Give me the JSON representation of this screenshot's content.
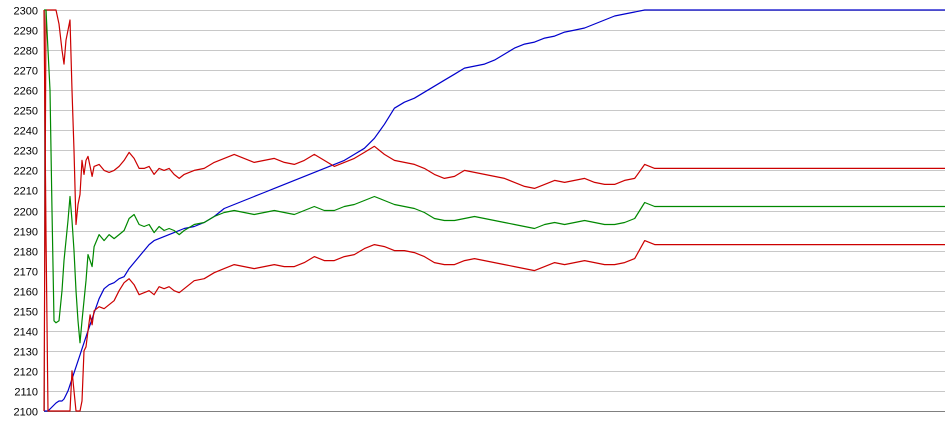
{
  "chart_data": {
    "type": "line",
    "title": "",
    "xlabel": "",
    "ylabel": "",
    "ylim": [
      2100,
      2300
    ],
    "grid": true,
    "legend": "none",
    "y_ticks": [
      2100,
      2110,
      2120,
      2130,
      2140,
      2150,
      2160,
      2170,
      2180,
      2190,
      2200,
      2210,
      2220,
      2230,
      2240,
      2250,
      2260,
      2270,
      2280,
      2290,
      2300
    ],
    "x": [
      0,
      2,
      4,
      6,
      8,
      10,
      12,
      15,
      18,
      20,
      22,
      24,
      26,
      28,
      30,
      32,
      34,
      36,
      38,
      40,
      42,
      44,
      46,
      48,
      50,
      55,
      60,
      65,
      70,
      75,
      80,
      85,
      90,
      95,
      100,
      105,
      110,
      115,
      120,
      125,
      130,
      135,
      140,
      150,
      160,
      170,
      180,
      190,
      200,
      210,
      220,
      230,
      240,
      250,
      260,
      270,
      280,
      290,
      300,
      310,
      320,
      330,
      340,
      350,
      360,
      370,
      380,
      390,
      400,
      410,
      420,
      430,
      440,
      450,
      460,
      470,
      480,
      490,
      500,
      510,
      520,
      530,
      540,
      550,
      560,
      570,
      580,
      590,
      600,
      610,
      620,
      630,
      640,
      650,
      660,
      670,
      680,
      690,
      700,
      710,
      720,
      730,
      740,
      750,
      760,
      770,
      780,
      790,
      800,
      810,
      820,
      830,
      840,
      850,
      860,
      870,
      880,
      890,
      895,
      900
    ],
    "series": [
      {
        "color": "#0000cc",
        "values": [
          2100,
          2100,
          2100,
          2101,
          2102,
          2103,
          2104,
          2105,
          2105,
          2106,
          2108,
          2110,
          2113,
          2116,
          2119,
          2122,
          2125,
          2128,
          2131,
          2134,
          2137,
          2140,
          2143,
          2146,
          2149,
          2156,
          2161,
          2163,
          2164,
          2166,
          2167,
          2171,
          2174,
          2177,
          2180,
          2183,
          2185,
          2186,
          2187,
          2188,
          2189,
          2190,
          2191,
          2192,
          2194,
          2197,
          2201,
          2203,
          2205,
          2207,
          2209,
          2211,
          2213,
          2215,
          2217,
          2219,
          2221,
          2223,
          2225,
          2228,
          2231,
          2236,
          2243,
          2251,
          2254,
          2256,
          2259,
          2262,
          2265,
          2268,
          2271,
          2272,
          2273,
          2275,
          2278,
          2281,
          2283,
          2284,
          2286,
          2287,
          2289,
          2290,
          2291,
          2293,
          2295,
          2297,
          2298,
          2299,
          2300,
          2300,
          2300,
          2300,
          2300,
          2300,
          2300,
          2300,
          2300,
          2300,
          2300,
          2300,
          2300,
          2300,
          2300,
          2300,
          2300,
          2300,
          2300,
          2300,
          2300,
          2300,
          2300,
          2300,
          2300,
          2300,
          2300,
          2300,
          2300,
          2300,
          2300,
          2300
        ]
      },
      {
        "color": "#cc0000",
        "values": [
          2100,
          2300,
          2300,
          2300,
          2300,
          2300,
          2300,
          2293,
          2280,
          2273,
          2285,
          2290,
          2295,
          2260,
          2230,
          2193,
          2203,
          2208,
          2225,
          2218,
          2225,
          2227,
          2222,
          2217,
          2222,
          2223,
          2220,
          2219,
          2220,
          2222,
          2225,
          2229,
          2226,
          2221,
          2221,
          2222,
          2218,
          2221,
          2220,
          2221,
          2218,
          2216,
          2218,
          2220,
          2221,
          2224,
          2226,
          2228,
          2226,
          2224,
          2225,
          2226,
          2224,
          2223,
          2225,
          2228,
          2225,
          2222,
          2224,
          2226,
          2229,
          2232,
          2228,
          2225,
          2224,
          2223,
          2221,
          2218,
          2216,
          2217,
          2220,
          2219,
          2218,
          2217,
          2216,
          2214,
          2212,
          2211,
          2213,
          2215,
          2214,
          2215,
          2216,
          2214,
          2213,
          2213,
          2215,
          2216,
          2223,
          2221,
          2221,
          2221,
          2221,
          2221,
          2221,
          2221,
          2221,
          2221,
          2221,
          2221,
          2221,
          2221,
          2221,
          2221,
          2221,
          2221,
          2221,
          2221,
          2221,
          2221,
          2221,
          2221,
          2221,
          2221,
          2221,
          2221,
          2221,
          2221,
          2221,
          2221
        ]
      },
      {
        "color": "#008800",
        "values": [
          2300,
          2300,
          2280,
          2260,
          2200,
          2145,
          2144,
          2145,
          2160,
          2175,
          2185,
          2195,
          2207,
          2195,
          2180,
          2160,
          2145,
          2134,
          2145,
          2155,
          2165,
          2178,
          2175,
          2172,
          2182,
          2188,
          2185,
          2188,
          2186,
          2188,
          2190,
          2196,
          2198,
          2193,
          2192,
          2193,
          2189,
          2192,
          2190,
          2191,
          2190,
          2188,
          2190,
          2193,
          2194,
          2197,
          2199,
          2200,
          2199,
          2198,
          2199,
          2200,
          2199,
          2198,
          2200,
          2202,
          2200,
          2200,
          2202,
          2203,
          2205,
          2207,
          2205,
          2203,
          2202,
          2201,
          2199,
          2196,
          2195,
          2195,
          2196,
          2197,
          2196,
          2195,
          2194,
          2193,
          2192,
          2191,
          2193,
          2194,
          2193,
          2194,
          2195,
          2194,
          2193,
          2193,
          2194,
          2196,
          2204,
          2202,
          2202,
          2202,
          2202,
          2202,
          2202,
          2202,
          2202,
          2202,
          2202,
          2202,
          2202,
          2202,
          2202,
          2202,
          2202,
          2202,
          2202,
          2202,
          2202,
          2202,
          2202,
          2202,
          2202,
          2202,
          2202,
          2202,
          2202,
          2202,
          2202,
          2202
        ]
      },
      {
        "color": "#cc0000",
        "values": [
          2300,
          2188,
          2100,
          2100,
          2100,
          2100,
          2100,
          2100,
          2100,
          2100,
          2100,
          2100,
          2100,
          2120,
          2110,
          2100,
          2100,
          2100,
          2105,
          2130,
          2132,
          2140,
          2148,
          2143,
          2150,
          2152,
          2151,
          2153,
          2155,
          2160,
          2164,
          2166,
          2163,
          2158,
          2159,
          2160,
          2158,
          2162,
          2161,
          2162,
          2160,
          2159,
          2161,
          2165,
          2166,
          2169,
          2171,
          2173,
          2172,
          2171,
          2172,
          2173,
          2172,
          2172,
          2174,
          2177,
          2175,
          2175,
          2177,
          2178,
          2181,
          2183,
          2182,
          2180,
          2180,
          2179,
          2177,
          2174,
          2173,
          2173,
          2175,
          2176,
          2175,
          2174,
          2173,
          2172,
          2171,
          2170,
          2172,
          2174,
          2173,
          2174,
          2175,
          2174,
          2173,
          2173,
          2174,
          2176,
          2185,
          2183,
          2183,
          2183,
          2183,
          2183,
          2183,
          2183,
          2183,
          2183,
          2183,
          2183,
          2183,
          2183,
          2183,
          2183,
          2183,
          2183,
          2183,
          2183,
          2183,
          2183,
          2183,
          2183,
          2183,
          2183,
          2183,
          2183,
          2183,
          2183,
          2183,
          2183
        ]
      }
    ]
  }
}
